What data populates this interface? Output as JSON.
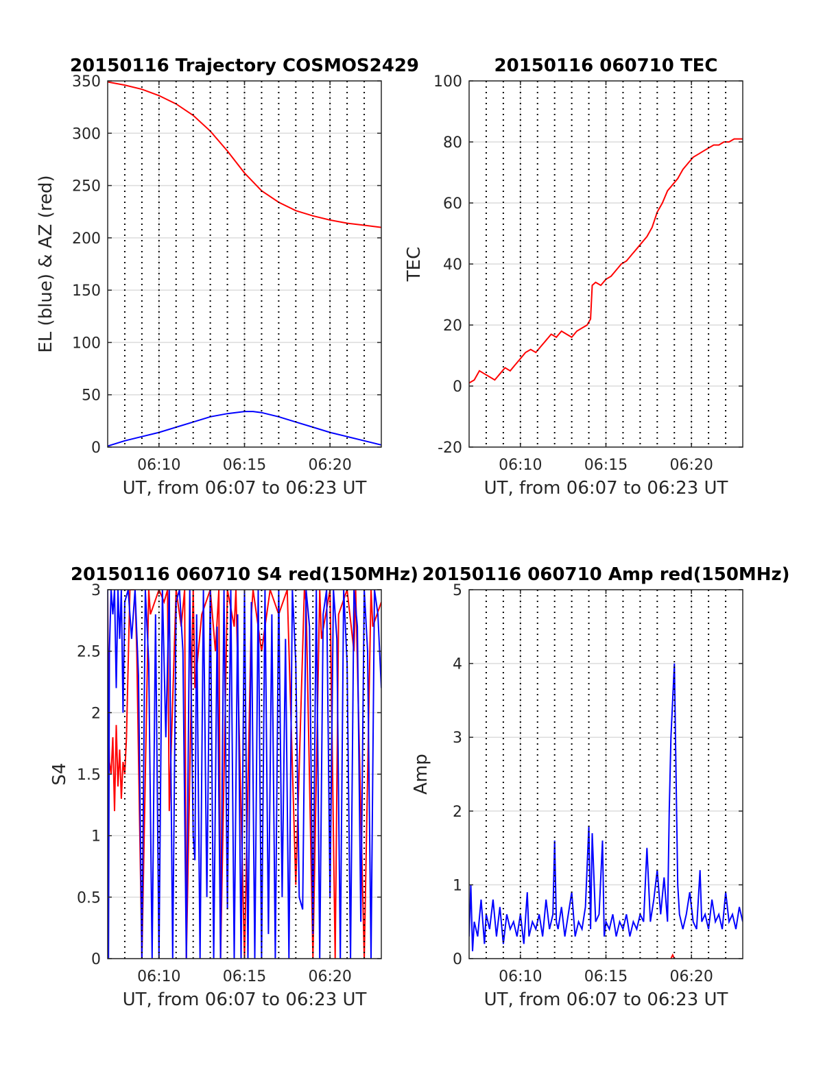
{
  "colors": {
    "red": "#ff0000",
    "blue": "#0000ff",
    "grid": "#dcdcdc",
    "axis": "#262626"
  },
  "chart_data": [
    {
      "type": "line",
      "title": "20150116 Trajectory COSMOS2429",
      "xlabel": "UT, from 06:07 to 06:23 UT",
      "ylabel": "EL (blue) & AZ (red)",
      "xlim": [
        7,
        23
      ],
      "ylim": [
        0,
        350
      ],
      "xticks": [
        10,
        15,
        20
      ],
      "xtick_labels": [
        "06:10",
        "06:15",
        "06:20"
      ],
      "yticks": [
        0,
        50,
        100,
        150,
        200,
        250,
        300,
        350
      ],
      "ytick_labels": [
        "0",
        "50",
        "100",
        "150",
        "200",
        "250",
        "300",
        "350"
      ],
      "grid": true,
      "vlines": [
        8,
        9,
        10,
        11,
        12,
        13,
        14,
        15,
        16,
        17,
        18,
        19,
        20,
        21,
        22
      ],
      "series": [
        {
          "color": "red",
          "x": [
            7,
            8,
            9,
            10,
            11,
            12,
            13,
            14,
            15,
            16,
            17,
            18,
            19,
            20,
            21,
            22,
            23
          ],
          "y": [
            349,
            346,
            342,
            336,
            328,
            317,
            302,
            283,
            262,
            245,
            234,
            226,
            221,
            217,
            214,
            212,
            210
          ]
        },
        {
          "color": "blue",
          "x": [
            7,
            8,
            9,
            10,
            11,
            12,
            13,
            14,
            15,
            15.5,
            16,
            17,
            18,
            19,
            20,
            21,
            22,
            23
          ],
          "y": [
            1,
            6,
            10,
            14,
            19,
            24,
            29,
            32,
            34,
            34,
            33,
            29,
            24,
            19,
            14,
            10,
            6,
            2
          ]
        }
      ]
    },
    {
      "type": "line",
      "title": "20150116 060710 TEC",
      "xlabel": "UT, from 06:07 to 06:23 UT",
      "ylabel": "TEC",
      "xlim": [
        7,
        23
      ],
      "ylim": [
        -20,
        100
      ],
      "xticks": [
        10,
        15,
        20
      ],
      "xtick_labels": [
        "06:10",
        "06:15",
        "06:20"
      ],
      "yticks": [
        -20,
        0,
        20,
        40,
        60,
        80,
        100
      ],
      "ytick_labels": [
        "-20",
        "0",
        "20",
        "40",
        "60",
        "80",
        "100"
      ],
      "grid": true,
      "vlines": [
        8,
        9,
        10,
        11,
        12,
        13,
        14,
        15,
        16,
        17,
        18,
        19,
        20,
        21,
        22
      ],
      "series": [
        {
          "color": "red",
          "x": [
            7,
            7.3,
            7.6,
            7.9,
            8.2,
            8.5,
            8.8,
            9.1,
            9.4,
            9.7,
            10,
            10.3,
            10.6,
            10.9,
            11.2,
            11.5,
            11.8,
            12.1,
            12.4,
            12.7,
            13,
            13.3,
            13.6,
            13.9,
            14.1,
            14.2,
            14.4,
            14.7,
            15,
            15.3,
            15.6,
            15.9,
            16.2,
            16.5,
            16.8,
            17.1,
            17.4,
            17.7,
            18,
            18.3,
            18.6,
            18.9,
            19.2,
            19.5,
            19.8,
            20.1,
            20.4,
            20.7,
            21,
            21.3,
            21.6,
            21.9,
            22.2,
            22.5,
            22.8,
            23
          ],
          "y": [
            1,
            2,
            5,
            4,
            3,
            2,
            4,
            6,
            5,
            7,
            9,
            11,
            12,
            11,
            13,
            15,
            17,
            16,
            18,
            17,
            16,
            18,
            19,
            20,
            22,
            33,
            34,
            33,
            35,
            36,
            38,
            40,
            41,
            43,
            45,
            47,
            49,
            52,
            57,
            60,
            64,
            66,
            68,
            71,
            73,
            75,
            76,
            77,
            78,
            79,
            79,
            80,
            80,
            81,
            81,
            81
          ]
        }
      ]
    },
    {
      "type": "line",
      "title": "20150116 060710 S4 red(150MHz)",
      "xlabel": "UT, from 06:07 to 06:23 UT",
      "ylabel": "S4",
      "xlim": [
        7,
        23
      ],
      "ylim": [
        0,
        3
      ],
      "xticks": [
        10,
        15,
        20
      ],
      "xtick_labels": [
        "06:10",
        "06:15",
        "06:20"
      ],
      "yticks": [
        0,
        0.5,
        1,
        1.5,
        2,
        2.5,
        3
      ],
      "ytick_labels": [
        "0",
        "0.5",
        "1",
        "1.5",
        "2",
        "2.5",
        "3"
      ],
      "grid": true,
      "vlines": [
        8,
        9,
        10,
        11,
        12,
        13,
        14,
        15,
        16,
        17,
        18,
        19,
        20,
        21,
        22
      ],
      "series": [
        {
          "color": "red",
          "x": [
            7,
            7.05,
            7.1,
            7.2,
            7.3,
            7.4,
            7.5,
            7.6,
            7.7,
            7.8,
            7.9,
            8.0,
            8.1,
            8.3,
            8.6,
            8.7,
            9.0,
            9.4,
            9.5,
            10.0,
            10.3,
            10.5,
            10.6,
            11.0,
            11.3,
            11.5,
            11.6,
            12.0,
            12.1,
            12.5,
            13.0,
            13.3,
            13.5,
            13.6,
            14.0,
            14.4,
            14.5,
            15.0,
            15.4,
            15.5,
            16.0,
            16.5,
            17.0,
            17.5,
            18.0,
            18.5,
            18.6,
            19.0,
            19.4,
            19.5,
            20.0,
            20.3,
            20.5,
            21.0,
            21.4,
            21.5,
            22.0,
            22.4,
            22.5,
            23
          ],
          "y": [
            3,
            2.0,
            1.6,
            1.5,
            1.8,
            1.2,
            1.9,
            1.4,
            1.7,
            1.3,
            1.6,
            1.5,
            1.8,
            3,
            3,
            2.5,
            0,
            3,
            2.8,
            3,
            2.9,
            3,
            1.2,
            3,
            2.7,
            3,
            0,
            3,
            2.2,
            2.8,
            3,
            2.5,
            3,
            0,
            3,
            2.7,
            3,
            0,
            2.8,
            3,
            2.5,
            3,
            2.8,
            3,
            0.6,
            3,
            2.9,
            0,
            3,
            2.6,
            3,
            0,
            2.8,
            3,
            2.5,
            3,
            0,
            3,
            2.7,
            2.9
          ]
        },
        {
          "color": "blue",
          "x": [
            7,
            7.05,
            7.1,
            7.2,
            7.3,
            7.4,
            7.5,
            7.6,
            7.7,
            7.8,
            7.9,
            8.0,
            8.2,
            8.4,
            8.6,
            8.8,
            9.0,
            9.2,
            9.4,
            9.6,
            9.8,
            10.0,
            10.2,
            10.4,
            10.6,
            10.8,
            11.0,
            11.2,
            11.4,
            11.6,
            11.8,
            12.0,
            12.1,
            12.2,
            12.4,
            12.6,
            12.8,
            13.0,
            13.2,
            13.4,
            13.6,
            13.8,
            14.0,
            14.2,
            14.4,
            14.6,
            14.8,
            15.0,
            15.2,
            15.4,
            15.6,
            15.8,
            16.0,
            16.2,
            16.4,
            16.6,
            16.8,
            17.0,
            17.2,
            17.4,
            17.6,
            17.8,
            18.0,
            18.2,
            18.4,
            18.6,
            18.8,
            19.0,
            19.2,
            19.4,
            19.6,
            19.8,
            20.0,
            20.2,
            20.4,
            20.6,
            20.8,
            21.0,
            21.2,
            21.4,
            21.6,
            21.8,
            22.0,
            22.2,
            22.4,
            22.6,
            22.8,
            23
          ],
          "y": [
            3,
            0,
            2.5,
            3,
            2.8,
            3,
            2.2,
            3,
            2.6,
            3,
            2.0,
            2.9,
            3,
            2.6,
            3,
            2.3,
            0,
            3,
            2.4,
            0,
            2.8,
            0,
            3,
            1.8,
            3,
            0,
            2.9,
            3,
            2.5,
            0,
            3,
            1.0,
            0.8,
            2.8,
            0,
            3,
            0.5,
            3,
            0,
            2.7,
            0,
            3,
            0.4,
            3,
            0,
            2.8,
            0,
            3,
            0,
            2.9,
            0,
            3,
            0,
            3,
            0.2,
            2.8,
            0,
            3,
            0.5,
            2.6,
            0,
            3,
            2.4,
            0.5,
            0.4,
            3,
            2.7,
            0.2,
            3,
            0,
            2.8,
            3,
            0.5,
            3,
            2.6,
            0,
            3,
            2.4,
            0,
            3,
            2.7,
            0.3,
            3,
            2.5,
            0,
            3,
            2.8,
            2.2
          ]
        }
      ]
    },
    {
      "type": "line",
      "title": "20150116 060710 Amp red(150MHz)",
      "xlabel": "UT, from 06:07 to 06:23 UT",
      "ylabel": "Amp",
      "xlim": [
        7,
        23
      ],
      "ylim": [
        0,
        5
      ],
      "xticks": [
        10,
        15,
        20
      ],
      "xtick_labels": [
        "06:10",
        "06:15",
        "06:20"
      ],
      "yticks": [
        0,
        1,
        2,
        3,
        4,
        5
      ],
      "ytick_labels": [
        "0",
        "1",
        "2",
        "3",
        "4",
        "5"
      ],
      "grid": true,
      "vlines": [
        8,
        9,
        10,
        11,
        12,
        13,
        14,
        15,
        16,
        17,
        18,
        19,
        20,
        21,
        22
      ],
      "series": [
        {
          "color": "blue",
          "x": [
            7,
            7.1,
            7.2,
            7.3,
            7.5,
            7.7,
            7.9,
            8.0,
            8.2,
            8.4,
            8.6,
            8.8,
            9.0,
            9.2,
            9.4,
            9.6,
            9.8,
            10.0,
            10.2,
            10.4,
            10.5,
            10.7,
            10.9,
            11.1,
            11.3,
            11.5,
            11.7,
            11.9,
            12.0,
            12.1,
            12.2,
            12.4,
            12.6,
            12.8,
            13.0,
            13.2,
            13.4,
            13.6,
            13.8,
            14.0,
            14.1,
            14.2,
            14.4,
            14.6,
            14.8,
            14.9,
            15.0,
            15.2,
            15.4,
            15.6,
            15.8,
            16.0,
            16.2,
            16.4,
            16.6,
            16.8,
            17.0,
            17.2,
            17.4,
            17.6,
            17.8,
            18.0,
            18.2,
            18.4,
            18.6,
            18.7,
            18.8,
            18.9,
            19.0,
            19.1,
            19.2,
            19.3,
            19.5,
            19.7,
            19.9,
            20.1,
            20.3,
            20.5,
            20.6,
            20.8,
            21.0,
            21.2,
            21.4,
            21.6,
            21.8,
            22.0,
            22.2,
            22.4,
            22.6,
            22.8,
            23
          ],
          "y": [
            0.3,
            1.0,
            0.1,
            0.5,
            0.3,
            0.8,
            0.2,
            0.6,
            0.4,
            0.8,
            0.3,
            0.7,
            0.2,
            0.6,
            0.4,
            0.5,
            0.3,
            0.6,
            0.2,
            0.9,
            0.3,
            0.5,
            0.4,
            0.6,
            0.3,
            0.8,
            0.4,
            0.6,
            1.6,
            0.5,
            0.4,
            0.7,
            0.3,
            0.6,
            0.9,
            0.3,
            0.5,
            0.4,
            0.7,
            1.8,
            0.4,
            1.7,
            0.5,
            0.6,
            1.6,
            0.3,
            0.5,
            0.4,
            0.6,
            0.3,
            0.5,
            0.4,
            0.6,
            0.3,
            0.5,
            0.4,
            0.6,
            0.5,
            1.5,
            0.5,
            0.8,
            1.2,
            0.6,
            1.1,
            0.5,
            2.0,
            3.0,
            3.5,
            4.0,
            2.5,
            1.0,
            0.6,
            0.4,
            0.6,
            0.9,
            0.5,
            0.4,
            1.2,
            0.5,
            0.6,
            0.4,
            0.8,
            0.5,
            0.6,
            0.4,
            0.9,
            0.5,
            0.6,
            0.4,
            0.7,
            0.5
          ]
        },
        {
          "color": "red",
          "x": [
            18.8,
            18.9,
            19.0
          ],
          "y": [
            0.0,
            0.05,
            0.0
          ]
        }
      ]
    }
  ]
}
